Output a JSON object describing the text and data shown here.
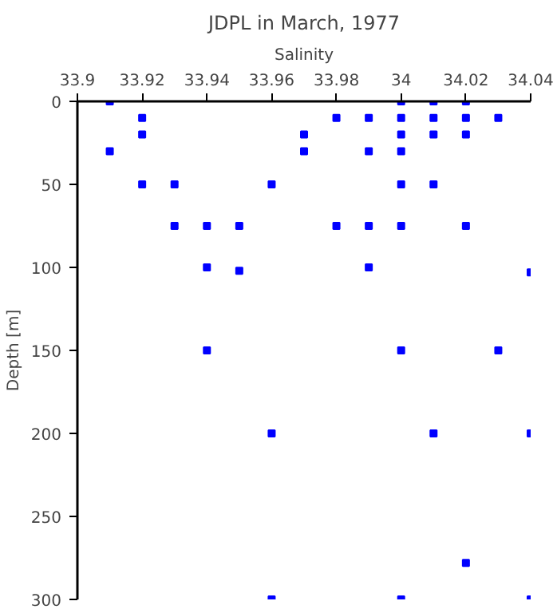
{
  "chart_data": {
    "type": "scatter",
    "title": "JDPL in March, 1977",
    "xlabel": "Salinity",
    "ylabel": "Depth [m]",
    "x": [
      33.91,
      33.92,
      33.92,
      33.91,
      33.92,
      33.93,
      33.96,
      33.93,
      33.94,
      33.95,
      33.94,
      33.95,
      33.97,
      33.97,
      34.0,
      34.01,
      34.02,
      33.98,
      33.99,
      34.0,
      34.01,
      34.02,
      34.03,
      34.0,
      34.01,
      34.02,
      33.99,
      34.0,
      34.0,
      34.01,
      33.98,
      33.99,
      34.0,
      34.02,
      33.99,
      34.04,
      33.94,
      34.0,
      34.03,
      33.96,
      34.01,
      34.04,
      34.02,
      33.96,
      34.0,
      34.04
    ],
    "values": [
      0,
      10,
      20,
      30,
      50,
      50,
      50,
      75,
      75,
      75,
      100,
      102,
      20,
      30,
      0,
      0,
      0,
      10,
      10,
      10,
      10,
      10,
      10,
      20,
      20,
      20,
      30,
      30,
      50,
      50,
      75,
      75,
      75,
      75,
      100,
      103,
      150,
      150,
      150,
      200,
      200,
      200,
      278,
      300,
      300,
      300
    ],
    "color": "#0000ff",
    "marker": "square",
    "xlim": [
      33.9,
      34.04
    ],
    "xticks": [
      {
        "value": 33.9,
        "label": "33.9"
      },
      33.92,
      33.94,
      33.96,
      33.98,
      {
        "value": 34.0,
        "label": "34"
      },
      34.02,
      34.04
    ],
    "ylim": [
      300,
      0
    ],
    "yticks": [
      0,
      50,
      100,
      150,
      200,
      250,
      300
    ],
    "grid": false
  }
}
